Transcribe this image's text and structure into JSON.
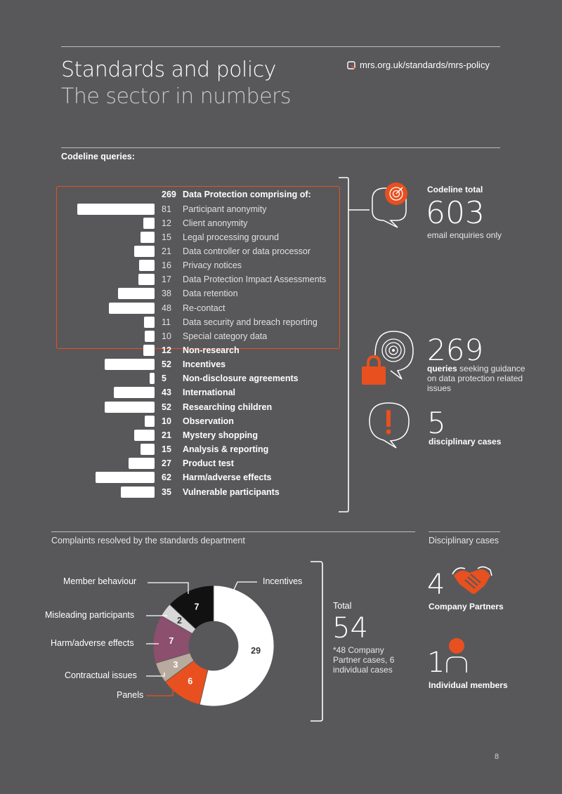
{
  "header": {
    "title": "Standards and policy",
    "subtitle": "The sector in numbers",
    "link": "mrs.org.uk/standards/mrs-policy"
  },
  "codeline": {
    "section_label": "Codeline queries:",
    "total_label": "Codeline total",
    "total_value": "603",
    "total_note": "email enquiries only",
    "dp_value": "269",
    "dp_bold": "queries",
    "dp_note": "seeking guidance on data protection related issues",
    "disc_value": "5",
    "disc_note": "disciplinary cases"
  },
  "complaints": {
    "section_label": "Complaints resolved by the standards department",
    "total_label": "Total",
    "total_value": "54",
    "total_note": "*48 Company Partner cases, 6 individual cases"
  },
  "disciplinary": {
    "section_label": "Disciplinary cases",
    "partners_value": "4",
    "partners_label": "Company Partners",
    "individuals_value": "1",
    "individuals_label": "Individual members"
  },
  "page_number": "8",
  "colors": {
    "accent": "#e8501f",
    "background": "#58585b",
    "bar": "#ffffff"
  },
  "chart_data": [
    {
      "type": "bar",
      "orientation": "horizontal",
      "header_row": {
        "value": 269,
        "label": "Data Protection comprising of:"
      },
      "categories": [
        "Participant anonymity",
        "Client anonymity",
        "Legal processing ground",
        "Data controller or data processor",
        "Privacy notices",
        "Data Protection Impact Assessments",
        "Data retention",
        "Re-contact",
        "Data security and breach reporting",
        "Special category data",
        "Non-research",
        "Incentives",
        "Non-disclosure agreements",
        "International",
        "Researching children",
        "Observation",
        "Mystery shopping",
        "Analysis & reporting",
        "Product test",
        "Harm/adverse effects",
        "Vulnerable participants"
      ],
      "values": [
        81,
        12,
        15,
        21,
        16,
        17,
        38,
        48,
        11,
        10,
        12,
        52,
        5,
        43,
        52,
        10,
        21,
        15,
        27,
        62,
        35
      ],
      "group_size": 10
    },
    {
      "type": "pie",
      "style": "donut",
      "categories": [
        "Incentives",
        "Panels",
        "Contractual issues",
        "Harm/adverse effects",
        "Misleading participants",
        "Member behaviour"
      ],
      "values": [
        29,
        6,
        3,
        7,
        2,
        7
      ],
      "colors": [
        "#ffffff",
        "#e8501f",
        "#b8aa9c",
        "#8c4f6e",
        "#d8d8d8",
        "#111111"
      ],
      "label_colors": [
        "#333333",
        "#ffffff",
        "#ffffff",
        "#ffffff",
        "#333333",
        "#ffffff"
      ]
    }
  ]
}
